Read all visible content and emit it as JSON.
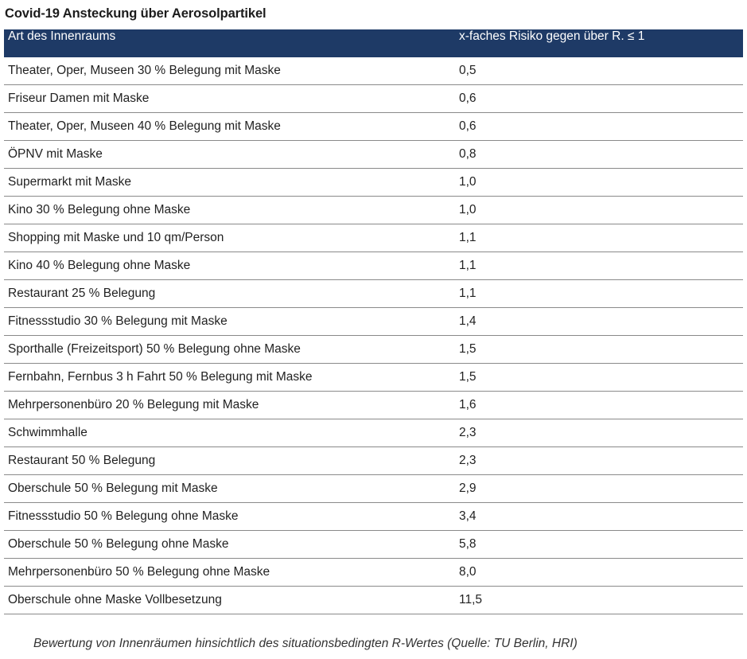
{
  "title": "Covid-19 Ansteckung über Aerosolpartikel",
  "colors": {
    "header_bg": "#1e3a66",
    "header_text": "#ffffff",
    "row_divider": "#8a8a8a"
  },
  "chart_data": {
    "type": "table",
    "title": "Covid-19 Ansteckung über Aerosolpartikel",
    "columns": [
      "Art des Innenraums",
      "x-faches Risiko gegen über R. ≤ 1"
    ],
    "rows": [
      [
        "Theater, Oper, Museen 30 % Belegung mit Maske",
        "0,5"
      ],
      [
        "Friseur Damen mit Maske",
        "0,6"
      ],
      [
        "Theater, Oper, Museen 40 % Belegung mit Maske",
        "0,6"
      ],
      [
        "ÖPNV mit Maske",
        "0,8"
      ],
      [
        "Supermarkt mit Maske",
        "1,0"
      ],
      [
        "Kino 30 % Belegung ohne Maske",
        "1,0"
      ],
      [
        "Shopping mit Maske und 10 qm/Person",
        "1,1"
      ],
      [
        "Kino 40 % Belegung ohne Maske",
        "1,1"
      ],
      [
        "Restaurant 25 % Belegung",
        "1,1"
      ],
      [
        "Fitnessstudio 30 % Belegung mit Maske",
        "1,4"
      ],
      [
        "Sporthalle (Freizeitsport) 50 % Belegung ohne Maske",
        "1,5"
      ],
      [
        "Fernbahn, Fernbus 3 h Fahrt 50 % Belegung mit Maske",
        "1,5"
      ],
      [
        "Mehrpersonenbüro 20 % Belegung mit Maske",
        "1,6"
      ],
      [
        "Schwimmhalle",
        "2,3"
      ],
      [
        "Restaurant 50 % Belegung",
        "2,3"
      ],
      [
        "Oberschule 50 % Belegung mit Maske",
        "2,9"
      ],
      [
        "Fitnessstudio 50 % Belegung ohne Maske",
        "3,4"
      ],
      [
        "Oberschule 50 % Belegung ohne Maske",
        "5,8"
      ],
      [
        "Mehrpersonenbüro 50 % Belegung ohne Maske",
        "8,0"
      ],
      [
        "Oberschule ohne Maske Vollbesetzung",
        "11,5"
      ]
    ]
  },
  "caption": "Bewertung von Innenräumen hinsichtlich des situationsbedingten R-Wertes (Quelle: TU Berlin, HRI)"
}
